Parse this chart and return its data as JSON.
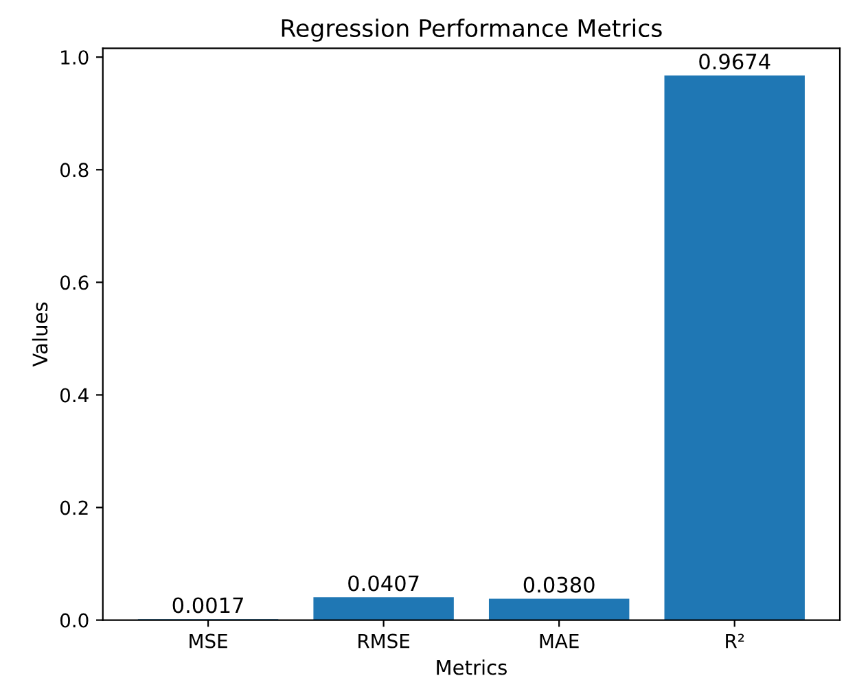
{
  "chart_data": {
    "type": "bar",
    "title": "Regression Performance Metrics",
    "xlabel": "Metrics",
    "ylabel": "Values",
    "categories": [
      "MSE",
      "RMSE",
      "MAE",
      "R²"
    ],
    "values": [
      0.0017,
      0.0407,
      0.038,
      0.9674
    ],
    "value_labels": [
      "0.0017",
      "0.0407",
      "0.0380",
      "0.9674"
    ],
    "color": "#1f77b4",
    "ylim": [
      0,
      1.0158
    ],
    "yticks": [
      {
        "value": 0,
        "label": "0.0"
      },
      {
        "value": 0.2,
        "label": "0.2"
      },
      {
        "value": 0.4,
        "label": "0.4"
      },
      {
        "value": 0.6,
        "label": "0.6"
      },
      {
        "value": 0.8,
        "label": "0.8"
      },
      {
        "value": 1.0,
        "label": "1.0"
      }
    ],
    "grid": false,
    "legend": false
  }
}
